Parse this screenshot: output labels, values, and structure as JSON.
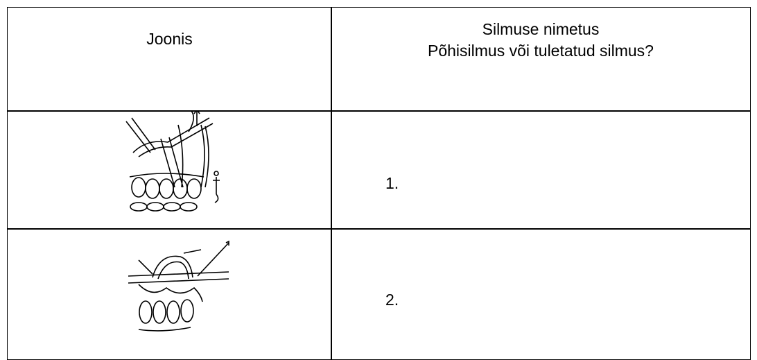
{
  "table": {
    "header": {
      "picture": "Joonis",
      "name_line1": "Silmuse nimetus",
      "name_line2": "Põhisilmus või tuletatud silmus?"
    },
    "rows": [
      {
        "name": "1."
      },
      {
        "name": "2."
      }
    ]
  }
}
